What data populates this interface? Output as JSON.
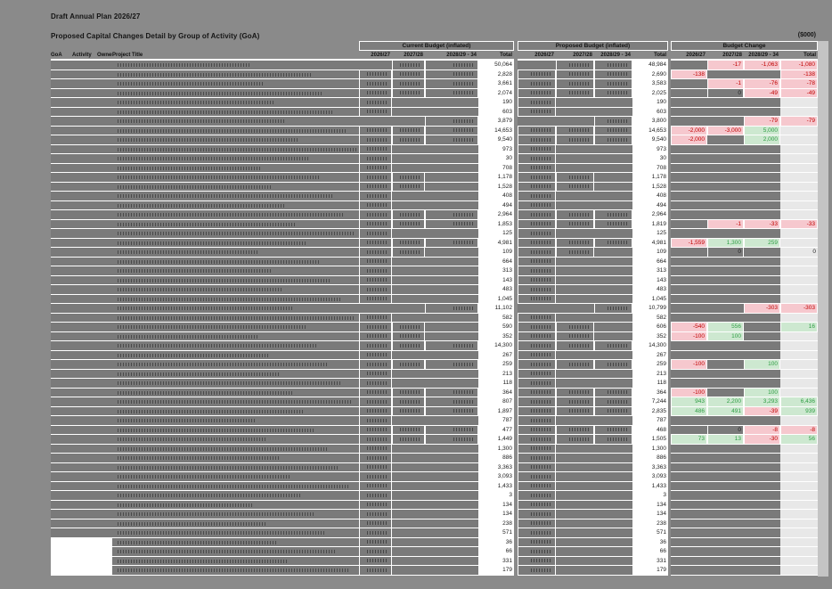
{
  "page": {
    "title1": "Draft Annual Plan 2026/27",
    "title2": "Proposed Capital Changes Detail by Group of Activity (GoA)",
    "units_label": "($000)"
  },
  "colors": {
    "page_bg": "#8a8a8a",
    "masked_bar": "#7a7a7a",
    "total_bg": "#ffffff",
    "negative_bg": "#f6c8ce",
    "negative_text": "#c00000",
    "positive_bg": "#cde8d0",
    "positive_text": "#2f9e44",
    "change_empty_bg": "#e8e8e8"
  },
  "table": {
    "left_headers": [
      "GoA",
      "Activity",
      "Owner",
      "Project Title"
    ],
    "groups": [
      {
        "label": "Current Budget (inflated)"
      },
      {
        "label": "Proposed Budget (inflated)"
      },
      {
        "label": "Budget Change"
      }
    ],
    "year_headers": [
      "2026/27",
      "2027/28",
      "2028/29 - 34",
      "Total"
    ]
  },
  "rows": [
    {
      "ct": "50,064",
      "pt": "48,984",
      "m": [
        0,
        1,
        1
      ],
      "c": [
        "",
        "-17",
        "-1,063",
        "-1,080"
      ]
    },
    {
      "ct": "2,828",
      "pt": "2,690",
      "m": [
        1,
        1,
        1
      ],
      "c": [
        "-138",
        "",
        "",
        "-138"
      ]
    },
    {
      "ct": "3,661",
      "pt": "3,583",
      "m": [
        1,
        1,
        1
      ],
      "c": [
        "",
        "-1",
        "-76",
        "-78"
      ]
    },
    {
      "ct": "2,074",
      "pt": "2,025",
      "m": [
        1,
        1,
        1
      ],
      "c": [
        "",
        "0",
        "-49",
        "-49"
      ]
    },
    {
      "ct": "190",
      "pt": "190",
      "m": [
        1,
        0,
        0
      ]
    },
    {
      "ct": "603",
      "pt": "603",
      "m": [
        1,
        0,
        0
      ]
    },
    {
      "ct": "3,879",
      "pt": "3,800",
      "m": [
        0,
        0,
        1
      ],
      "c": [
        "",
        "",
        "-79",
        "-79"
      ]
    },
    {
      "ct": "14,653",
      "pt": "14,653",
      "m": [
        1,
        1,
        1
      ],
      "c": [
        "-2,000",
        "-3,000",
        "5,000",
        ""
      ]
    },
    {
      "ct": "9,540",
      "pt": "9,540",
      "m": [
        1,
        1,
        1
      ],
      "c": [
        "-2,000",
        "",
        "2,000",
        ""
      ]
    },
    {
      "ct": "973",
      "pt": "973",
      "m": [
        1,
        0,
        0
      ]
    },
    {
      "ct": "30",
      "pt": "30",
      "m": [
        1,
        0,
        0
      ]
    },
    {
      "ct": "708",
      "pt": "708",
      "m": [
        1,
        0,
        0
      ]
    },
    {
      "ct": "1,178",
      "pt": "1,178",
      "m": [
        1,
        1,
        0
      ]
    },
    {
      "ct": "1,528",
      "pt": "1,528",
      "m": [
        1,
        1,
        0
      ]
    },
    {
      "ct": "408",
      "pt": "408",
      "m": [
        1,
        0,
        0
      ]
    },
    {
      "ct": "494",
      "pt": "494",
      "m": [
        1,
        0,
        0
      ]
    },
    {
      "ct": "2,964",
      "pt": "2,964",
      "m": [
        1,
        1,
        1
      ]
    },
    {
      "ct": "1,853",
      "pt": "1,819",
      "m": [
        1,
        1,
        1
      ],
      "c": [
        "",
        "-1",
        "-33",
        "-33"
      ]
    },
    {
      "ct": "125",
      "pt": "125",
      "m": [
        1,
        0,
        0
      ]
    },
    {
      "ct": "4,981",
      "pt": "4,981",
      "m": [
        1,
        1,
        1
      ],
      "c": [
        "-1,559",
        "1,300",
        "259",
        ""
      ]
    },
    {
      "ct": "109",
      "pt": "109",
      "m": [
        1,
        1,
        0
      ],
      "c": [
        "",
        "0",
        "",
        "0"
      ]
    },
    {
      "ct": "664",
      "pt": "664",
      "m": [
        1,
        0,
        0
      ]
    },
    {
      "ct": "313",
      "pt": "313",
      "m": [
        1,
        0,
        0
      ]
    },
    {
      "ct": "143",
      "pt": "143",
      "m": [
        1,
        0,
        0
      ]
    },
    {
      "ct": "483",
      "pt": "483",
      "m": [
        1,
        0,
        0
      ]
    },
    {
      "ct": "1,045",
      "pt": "1,045",
      "m": [
        1,
        0,
        0
      ]
    },
    {
      "ct": "11,102",
      "pt": "10,799",
      "m": [
        0,
        0,
        1
      ],
      "c": [
        "",
        "",
        "-303",
        "-303"
      ]
    },
    {
      "ct": "582",
      "pt": "582",
      "m": [
        1,
        0,
        0
      ]
    },
    {
      "ct": "590",
      "pt": "606",
      "m": [
        1,
        1,
        0
      ],
      "c": [
        "-540",
        "556",
        "",
        "16"
      ]
    },
    {
      "ct": "352",
      "pt": "352",
      "m": [
        1,
        1,
        0
      ],
      "c": [
        "-100",
        "100",
        "",
        ""
      ]
    },
    {
      "ct": "14,300",
      "pt": "14,300",
      "m": [
        1,
        1,
        1
      ]
    },
    {
      "ct": "267",
      "pt": "267",
      "m": [
        1,
        0,
        0
      ]
    },
    {
      "ct": "259",
      "pt": "259",
      "m": [
        1,
        1,
        1
      ],
      "c": [
        "-100",
        "",
        "100",
        ""
      ]
    },
    {
      "ct": "213",
      "pt": "213",
      "m": [
        1,
        0,
        0
      ]
    },
    {
      "ct": "118",
      "pt": "118",
      "m": [
        1,
        0,
        0
      ]
    },
    {
      "ct": "364",
      "pt": "364",
      "m": [
        1,
        1,
        1
      ],
      "c": [
        "-100",
        "",
        "100",
        ""
      ]
    },
    {
      "ct": "807",
      "pt": "7,244",
      "m": [
        1,
        1,
        1
      ],
      "c": [
        "943",
        "2,200",
        "3,293",
        "6,436"
      ]
    },
    {
      "ct": "1,897",
      "pt": "2,835",
      "m": [
        1,
        1,
        1
      ],
      "c": [
        "486",
        "491",
        "-39",
        "939"
      ]
    },
    {
      "ct": "787",
      "pt": "787",
      "m": [
        1,
        0,
        0
      ]
    },
    {
      "ct": "477",
      "pt": "468",
      "m": [
        1,
        1,
        1
      ],
      "c": [
        "",
        "0",
        "-8",
        "-8"
      ]
    },
    {
      "ct": "1,449",
      "pt": "1,505",
      "m": [
        1,
        1,
        1
      ],
      "c": [
        "73",
        "13",
        "-30",
        "56"
      ]
    },
    {
      "ct": "1,300",
      "pt": "1,300",
      "m": [
        1,
        0,
        0
      ]
    },
    {
      "ct": "886",
      "pt": "886",
      "m": [
        1,
        0,
        0
      ]
    },
    {
      "ct": "3,363",
      "pt": "3,363",
      "m": [
        1,
        0,
        0
      ]
    },
    {
      "ct": "3,093",
      "pt": "3,093",
      "m": [
        1,
        0,
        0
      ]
    },
    {
      "ct": "1,433",
      "pt": "1,433",
      "m": [
        1,
        0,
        0
      ]
    },
    {
      "ct": "3",
      "pt": "3",
      "m": [
        1,
        0,
        0
      ]
    },
    {
      "ct": "134",
      "pt": "134",
      "m": [
        1,
        0,
        0
      ]
    },
    {
      "ct": "134",
      "pt": "134",
      "m": [
        1,
        0,
        0
      ]
    },
    {
      "ct": "238",
      "pt": "238",
      "m": [
        1,
        0,
        0
      ]
    },
    {
      "ct": "571",
      "pt": "571",
      "m": [
        1,
        0,
        0
      ]
    },
    {
      "ct": "36",
      "pt": "36",
      "m": [
        1,
        0,
        0
      ],
      "lw": true
    },
    {
      "ct": "66",
      "pt": "66",
      "m": [
        1,
        0,
        0
      ],
      "lw": true
    },
    {
      "ct": "331",
      "pt": "331",
      "m": [
        1,
        0,
        0
      ],
      "lw": true
    },
    {
      "ct": "179",
      "pt": "179",
      "m": [
        1,
        0,
        0
      ],
      "lw": true
    }
  ]
}
